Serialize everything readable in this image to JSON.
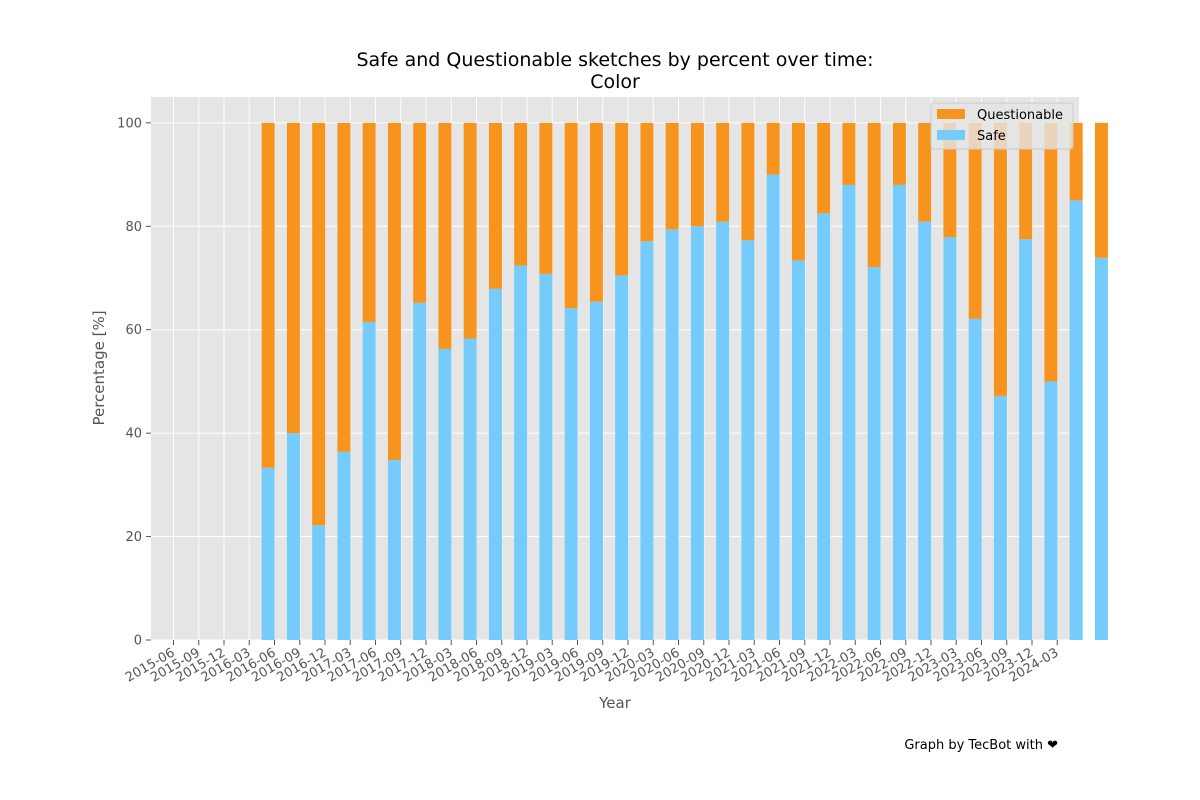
{
  "credit": "Graph by TecBot with ❤",
  "chart_data": {
    "type": "bar",
    "stacked": true,
    "title": "Safe and Questionable sketches by percent over time:",
    "subtitle": "Color",
    "xlabel": "Year",
    "ylabel": "Percentage [%]",
    "ylim": [
      0,
      105
    ],
    "yticks": [
      0,
      20,
      40,
      60,
      80,
      100
    ],
    "grid": true,
    "legend_position": "top-right",
    "x_tick_labels": [
      "2015-06",
      "2015-09",
      "2015-12",
      "2016-03",
      "2016-06",
      "2016-09",
      "2016-12",
      "2017-03",
      "2017-06",
      "2017-09",
      "2017-12",
      "2018-03",
      "2018-06",
      "2018-09",
      "2018-12",
      "2019-03",
      "2019-06",
      "2019-09",
      "2019-12",
      "2020-03",
      "2020-06",
      "2020-09",
      "2020-12",
      "2021-03",
      "2021-06",
      "2021-09",
      "2021-12",
      "2022-03",
      "2022-06",
      "2022-09",
      "2022-12",
      "2023-03",
      "2023-06",
      "2023-09",
      "2023-12",
      "2024-03"
    ],
    "colors": {
      "safe": "#75ccfc",
      "questionable": "#f7941e",
      "background": "#e5e5e5",
      "grid": "#ffffff"
    },
    "series": [
      {
        "name": "Safe",
        "key": "safe",
        "values": [
          33.3,
          40.0,
          22.2,
          36.4,
          61.5,
          34.8,
          65.2,
          56.3,
          58.3,
          67.9,
          72.4,
          70.8,
          64.2,
          65.4,
          70.5,
          77.1,
          79.4,
          80.0,
          80.9,
          77.3,
          90.0,
          73.4,
          82.5,
          88.0,
          72.1,
          88.0,
          80.9,
          77.9,
          62.1,
          47.2,
          77.5,
          50.0,
          85.0,
          73.9
        ]
      },
      {
        "name": "Questionable",
        "key": "questionable",
        "values": [
          66.7,
          60.0,
          77.8,
          63.6,
          38.5,
          65.2,
          34.8,
          43.7,
          41.7,
          32.1,
          27.6,
          29.2,
          35.8,
          34.6,
          29.5,
          22.9,
          20.6,
          20.0,
          19.1,
          22.7,
          10.0,
          26.6,
          17.5,
          12.0,
          27.9,
          12.0,
          19.1,
          22.1,
          37.9,
          52.8,
          22.5,
          50.0,
          15.0,
          26.1
        ]
      }
    ],
    "bar_start_tick_index": 1.25,
    "bar_step_ticks": 0.333333
  }
}
